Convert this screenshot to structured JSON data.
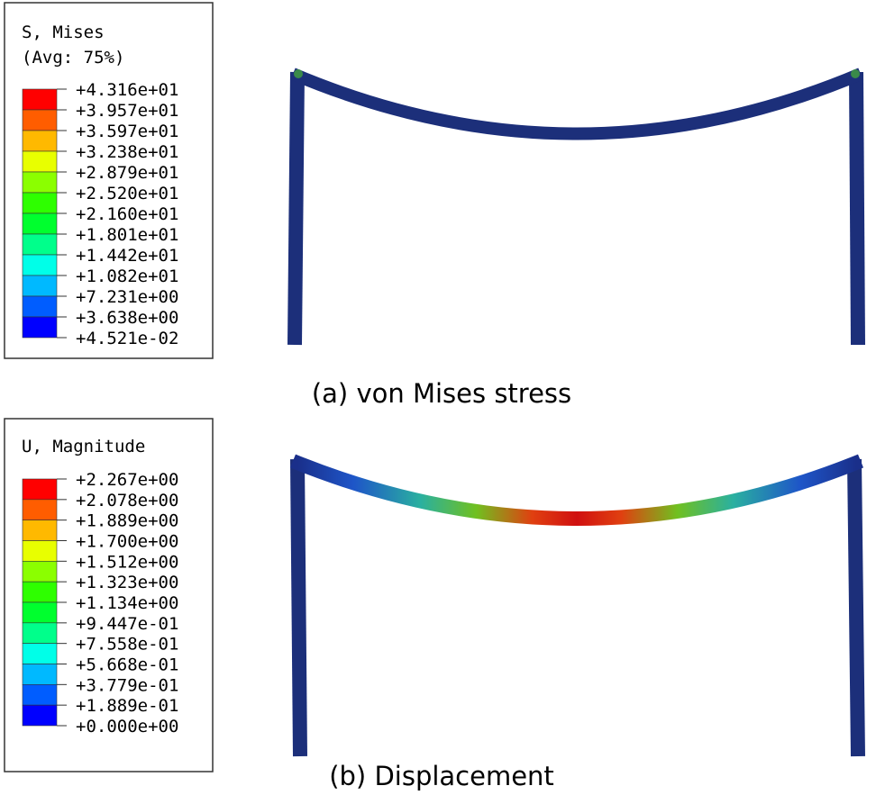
{
  "panels": [
    {
      "legend_title": [
        "S, Mises",
        "(Avg: 75%)"
      ],
      "legend_labels": [
        "+4.316e+01",
        "+3.957e+01",
        "+3.597e+01",
        "+3.238e+01",
        "+2.879e+01",
        "+2.520e+01",
        "+2.160e+01",
        "+1.801e+01",
        "+1.442e+01",
        "+1.082e+01",
        "+7.231e+00",
        "+3.638e+00",
        "+4.521e-02"
      ],
      "caption": "(a) von Mises stress"
    },
    {
      "legend_title": [
        "U, Magnitude"
      ],
      "legend_labels": [
        "+2.267e+00",
        "+2.078e+00",
        "+1.889e+00",
        "+1.700e+00",
        "+1.512e+00",
        "+1.323e+00",
        "+1.134e+00",
        "+9.447e-01",
        "+7.558e-01",
        "+5.668e-01",
        "+3.779e-01",
        "+1.889e-01",
        "+0.000e+00"
      ],
      "caption": "(b) Displacement"
    }
  ]
}
